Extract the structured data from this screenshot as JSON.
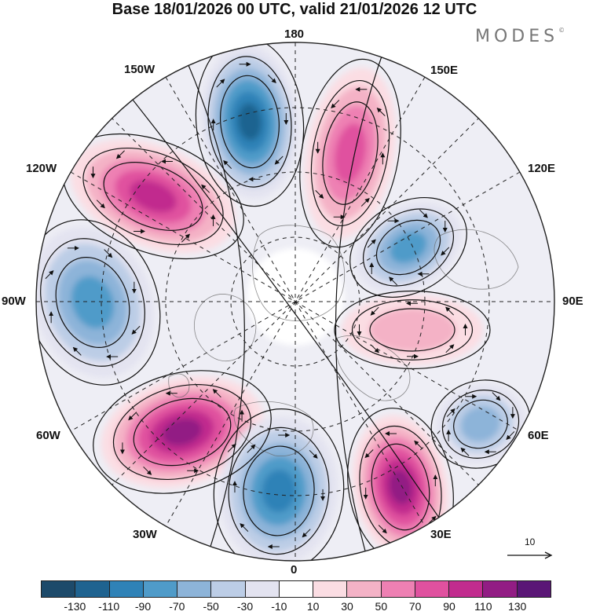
{
  "header": {
    "title": "Base 18/01/2026 00 UTC, valid 21/01/2026 12 UTC",
    "brand": "MODES",
    "brand_mark": "©"
  },
  "map": {
    "projection": "north-polar-stereographic",
    "longitude_labels": {
      "top": "180",
      "bottom": "0",
      "left": "90W",
      "right": "90E",
      "upper_left_1": "150W",
      "upper_left_2": "120W",
      "upper_right_1": "150E",
      "upper_right_2": "120E",
      "lower_left_1": "60W",
      "lower_left_2": "30W",
      "lower_right_1": "60E",
      "lower_right_2": "30E"
    },
    "anomaly_centers": [
      {
        "sign": "negative",
        "label": "180 sector trough",
        "value": -120
      },
      {
        "sign": "positive",
        "label": "150E ridge",
        "value": 80
      },
      {
        "sign": "positive",
        "label": "130W ridge",
        "value": 110
      },
      {
        "sign": "negative",
        "label": "100W trough",
        "value": -90
      },
      {
        "sign": "negative",
        "label": "120E trough",
        "value": -80
      },
      {
        "sign": "positive",
        "label": "90E ridge",
        "value": 40
      },
      {
        "sign": "negative",
        "label": "60E trough",
        "value": -70
      },
      {
        "sign": "positive",
        "label": "50W ridge",
        "value": 120
      },
      {
        "sign": "negative",
        "label": "10W trough",
        "value": -110
      },
      {
        "sign": "positive",
        "label": "30E ridge",
        "value": 130
      }
    ],
    "reference_vector": "10"
  },
  "colorbar": {
    "colors": [
      "#1d4a6a",
      "#1f6390",
      "#2f82b7",
      "#4f9bc9",
      "#8db4d9",
      "#bccde6",
      "#e3e3f0",
      "#ffffff",
      "#fbdde3",
      "#f4b2c6",
      "#ee80b3",
      "#e0519f",
      "#c12c8e",
      "#921d84",
      "#5a1676"
    ],
    "ticks": [
      "-130",
      "-110",
      "-90",
      "-70",
      "-50",
      "-30",
      "-10",
      "10",
      "30",
      "50",
      "70",
      "90",
      "110",
      "130"
    ]
  }
}
